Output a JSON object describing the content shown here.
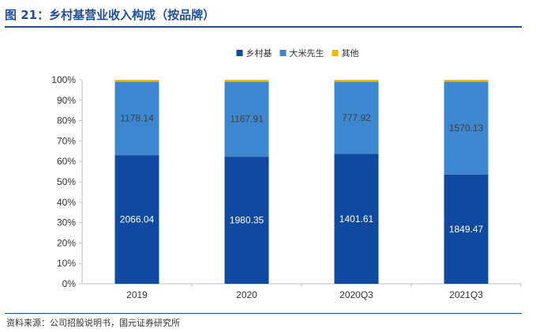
{
  "figure": {
    "title": "图 21：乡村基营业收入构成（按品牌）",
    "source": "资料来源：公司招股说明书，国元证券研究所"
  },
  "colors": {
    "title": "#1f4e9e",
    "series": [
      "#0f49a0",
      "#3c87d0",
      "#f5b800"
    ]
  },
  "chart_data": {
    "type": "bar",
    "stacked": "percent",
    "categories": [
      "2019",
      "2020",
      "2020Q3",
      "2021Q3"
    ],
    "series": [
      {
        "name": "乡村基",
        "values": [
          2066.04,
          1980.35,
          1401.61,
          1849.47
        ],
        "labels": [
          "2066.04",
          "1980.35",
          "1401.61",
          "1849.47"
        ]
      },
      {
        "name": "大米先生",
        "values": [
          1178.14,
          1167.91,
          777.92,
          1570.13
        ],
        "labels": [
          "1178.14",
          "1167.91",
          "777.92",
          "1570.13"
        ]
      },
      {
        "name": "其他",
        "shares": [
          0.009,
          0.009,
          0.009,
          0.009
        ]
      }
    ],
    "ylim": [
      0,
      100
    ],
    "yticks": [
      "0%",
      "10%",
      "20%",
      "30%",
      "40%",
      "50%",
      "60%",
      "70%",
      "80%",
      "90%",
      "100%"
    ],
    "legend": "top-center",
    "grid": false
  }
}
